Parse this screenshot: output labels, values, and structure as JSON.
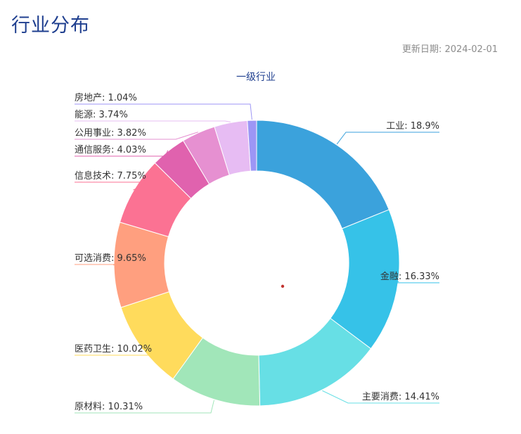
{
  "header": {
    "title": "行业分布",
    "update_label": "更新日期:",
    "update_date": "2024-02-01"
  },
  "chart_data": {
    "type": "pie",
    "title": "一级行业",
    "donut": true,
    "slices": [
      {
        "name": "工业",
        "value": 18.9,
        "label": "工业: 18.9%",
        "color": "#3ba2dc"
      },
      {
        "name": "金融",
        "value": 16.33,
        "label": "金融: 16.33%",
        "color": "#36c2e8"
      },
      {
        "name": "主要消费",
        "value": 14.41,
        "label": "主要消费: 14.41%",
        "color": "#67dfe5"
      },
      {
        "name": "原材料",
        "value": 10.31,
        "label": "原材料: 10.31%",
        "color": "#a1e6b9"
      },
      {
        "name": "医药卫生",
        "value": 10.02,
        "label": "医药卫生: 10.02%",
        "color": "#ffdb5c"
      },
      {
        "name": "可选消费",
        "value": 9.65,
        "label": "可选消费: 9.65%",
        "color": "#ff9f7f"
      },
      {
        "name": "信息技术",
        "value": 7.75,
        "label": "信息技术: 7.75%",
        "color": "#fb7293"
      },
      {
        "name": "通信服务",
        "value": 4.03,
        "label": "通信服务: 4.03%",
        "color": "#e062ae"
      },
      {
        "name": "公用事业",
        "value": 3.82,
        "label": "公用事业: 3.82%",
        "color": "#e690d1"
      },
      {
        "name": "能源",
        "value": 3.74,
        "label": "能源: 3.74%",
        "color": "#e7bcf3"
      },
      {
        "name": "房地产",
        "value": 1.04,
        "label": "房地产: 1.04%",
        "color": "#9d96f5"
      }
    ]
  }
}
